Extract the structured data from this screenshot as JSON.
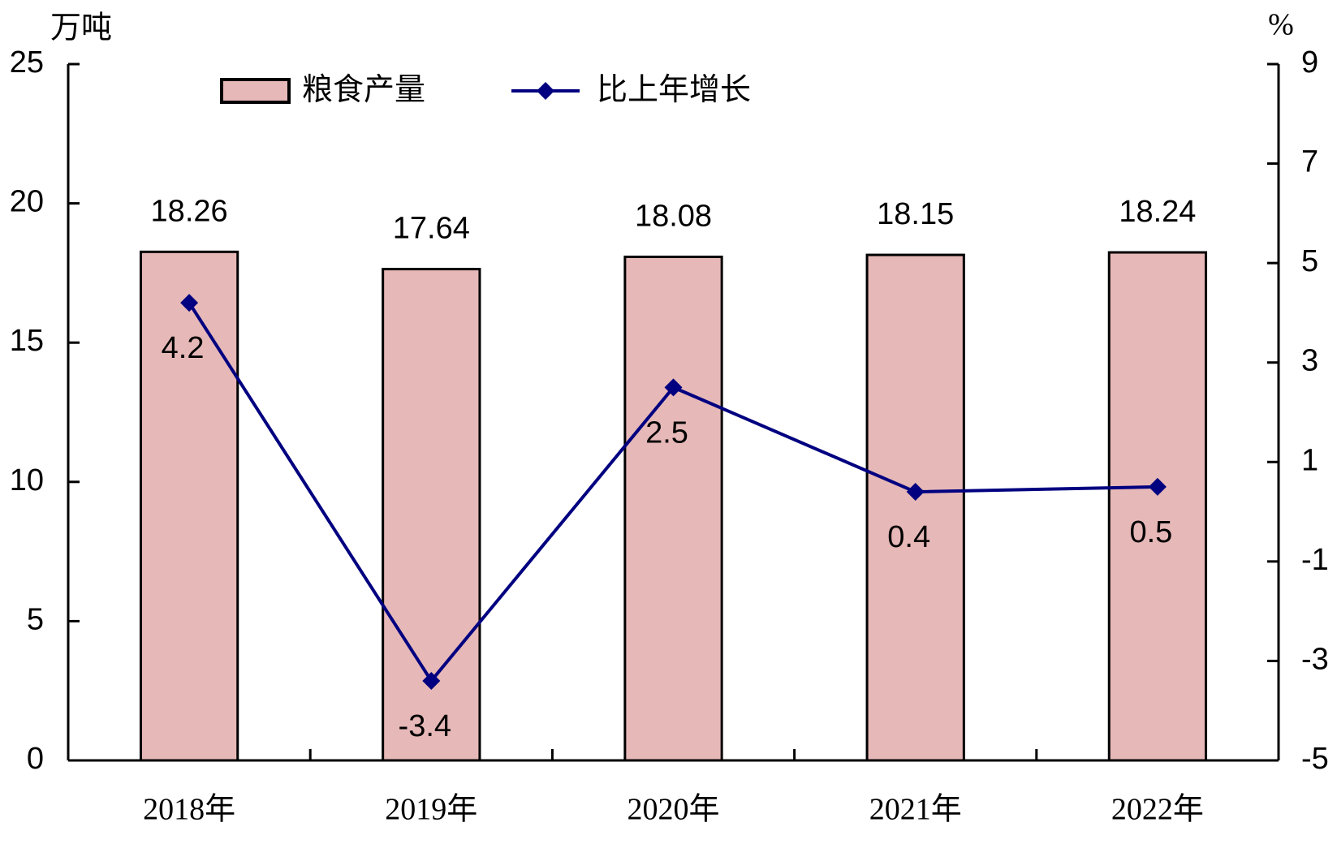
{
  "chart_data": {
    "type": "bar",
    "y_axis_label": "万吨",
    "y2_axis_label": "%",
    "categories": [
      "2018年",
      "2019年",
      "2020年",
      "2021年",
      "2022年"
    ],
    "series": [
      {
        "name": "粮食产量",
        "color": "#e6b8b7",
        "values": [
          18.26,
          17.64,
          18.08,
          18.15,
          18.24
        ]
      },
      {
        "name": "比上年增长",
        "type": "line",
        "axis": "y2",
        "color": "#000080",
        "values": [
          4.2,
          -3.4,
          2.5,
          0.4,
          0.5
        ]
      }
    ],
    "ylim": [
      0,
      25
    ],
    "yticks": [
      0,
      5,
      10,
      15,
      20,
      25
    ],
    "y2lim": [
      -5,
      9
    ],
    "y2ticks": [
      -5,
      -3,
      -1,
      1,
      3,
      5,
      7,
      9
    ],
    "grid": false,
    "legend": "top"
  }
}
